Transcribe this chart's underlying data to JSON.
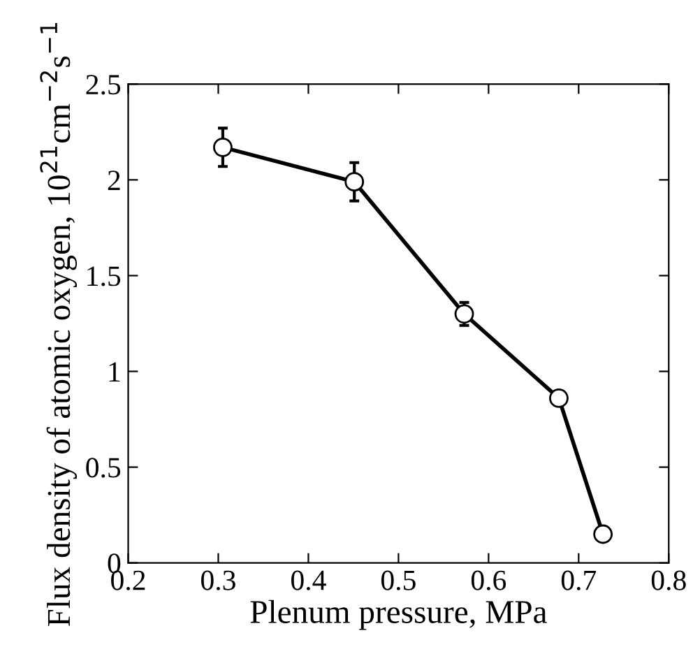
{
  "chart_data": {
    "type": "line",
    "xlabel": "Plenum pressure, MPa",
    "ylabel": "Flux density of atomic oxygen, 10$^{21}$cm$^{−2}$s$^{−1}$",
    "x": [
      0.305,
      0.451,
      0.573,
      0.678,
      0.727
    ],
    "series": [
      {
        "color": "#000000",
        "values": [
          2.17,
          1.99,
          1.3,
          0.86,
          0.15
        ],
        "errors": [
          0.1,
          0.1,
          0.06,
          null,
          null
        ]
      }
    ],
    "xlim": [
      0.2,
      0.8
    ],
    "xticks": [
      0.2,
      0.3,
      0.4,
      0.5,
      0.6,
      0.7,
      0.8
    ],
    "ylim": [
      0,
      2.5
    ],
    "yticks": [
      0,
      0.5,
      1,
      1.5,
      2,
      2.5
    ],
    "grid": false,
    "legend": false,
    "marker": "circle",
    "line_style": "solid"
  }
}
